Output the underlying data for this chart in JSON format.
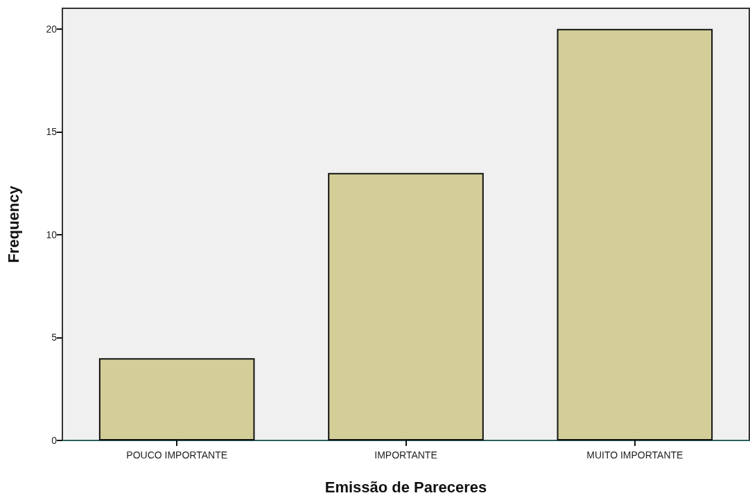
{
  "chart_data": {
    "type": "bar",
    "xlabel": "Emissão de Pareceres",
    "ylabel": "Frequency",
    "categories": [
      "POUCO IMPORTANTE",
      "IMPORTANTE",
      "MUITO IMPORTANTE"
    ],
    "values": [
      4,
      13,
      20
    ],
    "color": "#d3cd98",
    "ylim": [
      0,
      21
    ],
    "yticks": [
      0,
      5,
      10,
      15,
      20
    ],
    "grid": false
  }
}
